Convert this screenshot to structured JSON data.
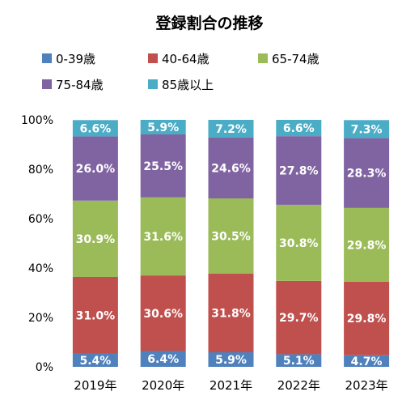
{
  "chart_data": {
    "type": "bar",
    "stacked": true,
    "percent": true,
    "title": "登録割合の推移",
    "categories": [
      "2019年",
      "2020年",
      "2021年",
      "2022年",
      "2023年"
    ],
    "series": [
      {
        "name": "0-39歳",
        "color": "#4F81BD",
        "values": [
          5.4,
          6.4,
          5.9,
          5.1,
          4.7
        ]
      },
      {
        "name": "40-64歳",
        "color": "#C0504D",
        "values": [
          31.0,
          30.6,
          31.8,
          29.7,
          29.8
        ]
      },
      {
        "name": "65-74歳",
        "color": "#9BBB59",
        "values": [
          30.9,
          31.6,
          30.5,
          30.8,
          29.8
        ]
      },
      {
        "name": "75-84歳",
        "color": "#8064A2",
        "values": [
          26.0,
          25.5,
          24.6,
          27.8,
          28.3
        ]
      },
      {
        "name": "85歳以上",
        "color": "#4BACC6",
        "values": [
          6.6,
          5.9,
          7.2,
          6.6,
          7.3
        ]
      }
    ],
    "data_labels": [
      [
        "5.4%",
        "6.4%",
        "5.9%",
        "5.1%",
        "4.7%"
      ],
      [
        "31.0%",
        "30.6%",
        "31.8%",
        "29.7%",
        "29.8%"
      ],
      [
        "30.9%",
        "31.6%",
        "30.5%",
        "30.8%",
        "29.8%"
      ],
      [
        "26.0%",
        "25.5%",
        "24.6%",
        "27.8%",
        "28.3%"
      ],
      [
        "6.6%",
        "5.9%",
        "7.2%",
        "6.6%",
        "7.3%"
      ]
    ],
    "yticks": [
      "0%",
      "20%",
      "40%",
      "60%",
      "80%",
      "100%"
    ],
    "ylim": [
      0,
      100
    ],
    "legend_position": "top",
    "grid": false
  }
}
